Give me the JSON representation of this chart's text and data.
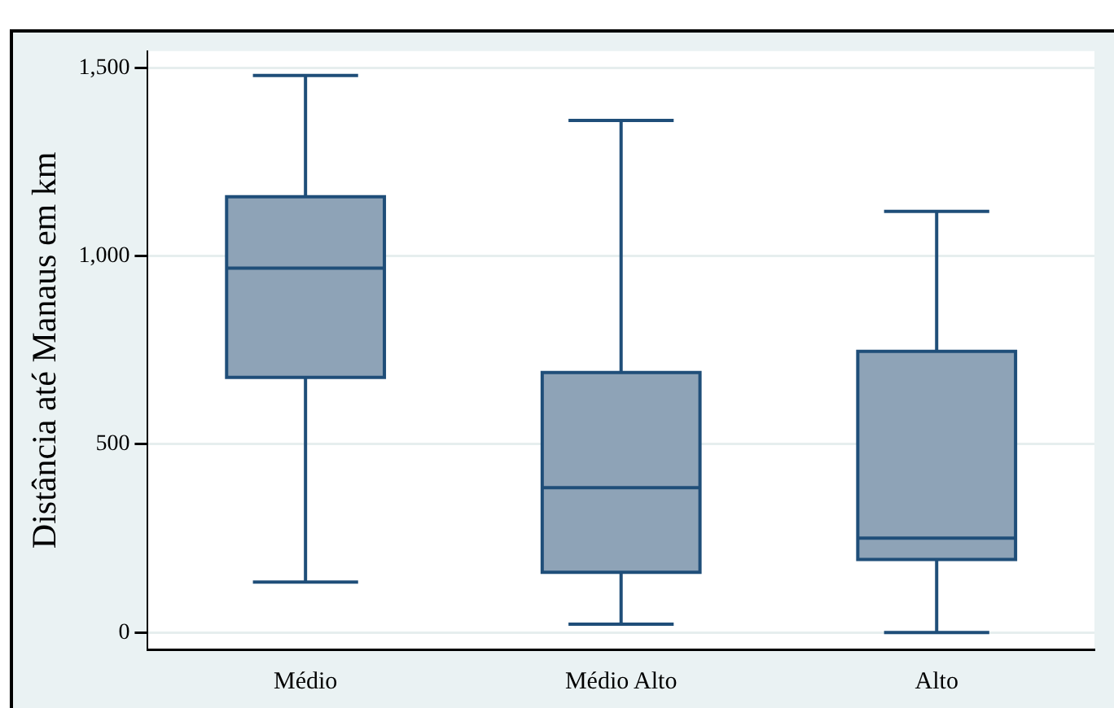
{
  "chart_data": {
    "type": "box",
    "ylabel": "Distância até Manaus em km",
    "categories": [
      "Médio",
      "Médio Alto",
      "Alto"
    ],
    "color": "#8ea3b7",
    "boxes": [
      {
        "low": 134,
        "q1": 678,
        "median": 968,
        "q3": 1158,
        "high": 1480
      },
      {
        "low": 22,
        "q1": 160,
        "median": 385,
        "q3": 691,
        "high": 1361
      },
      {
        "low": 0,
        "q1": 194,
        "median": 251,
        "q3": 747,
        "high": 1119
      }
    ],
    "ylim": [
      -45,
      1545
    ],
    "yticks": [
      0,
      500,
      {
        "value": 1000,
        "label": "1,000"
      },
      {
        "value": 1500,
        "label": "1,500"
      }
    ],
    "grid": "y",
    "legend": false
  }
}
